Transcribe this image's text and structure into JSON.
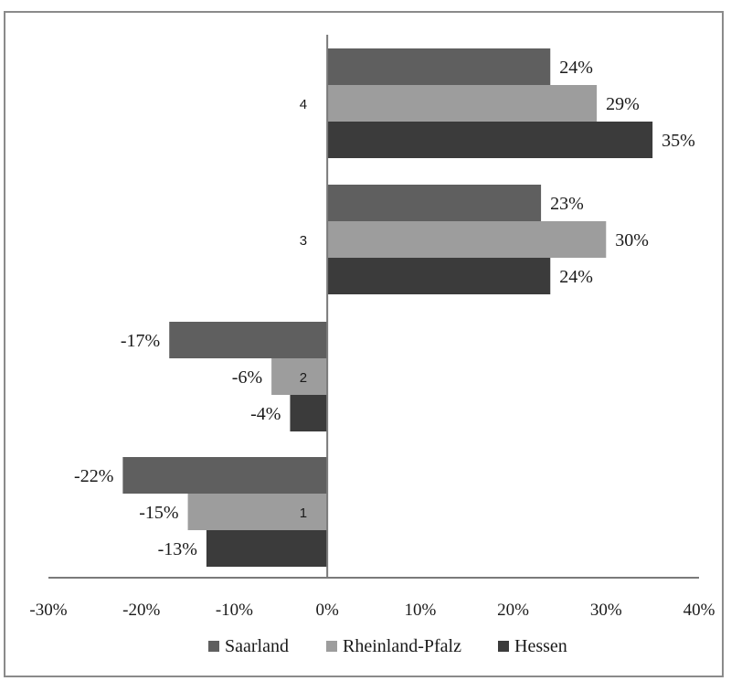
{
  "chart_data": {
    "type": "bar",
    "orientation": "horizontal",
    "title": "",
    "xlabel": "",
    "ylabel": "",
    "categories": [
      "1",
      "2",
      "3",
      "4"
    ],
    "series": [
      {
        "name": "Saarland",
        "values": [
          -22,
          -17,
          23,
          24
        ],
        "color": "#5f5f5f"
      },
      {
        "name": "Rheinland-Pfalz",
        "values": [
          -15,
          -6,
          30,
          29
        ],
        "color": "#9d9d9d"
      },
      {
        "name": "Hessen",
        "values": [
          -13,
          -4,
          24,
          35
        ],
        "color": "#3b3b3b"
      }
    ],
    "value_labels": {
      "Saarland": [
        "-22%",
        "-17%",
        "23%",
        "24%"
      ],
      "Rheinland-Pfalz": [
        "-15%",
        "-6%",
        "30%",
        "29%"
      ],
      "Hessen": [
        "-13%",
        "-4%",
        "24%",
        "35%"
      ]
    },
    "xlim": [
      -30,
      40
    ],
    "xticks": [
      -30,
      -20,
      -10,
      0,
      10,
      20,
      30,
      40
    ],
    "xtick_labels": [
      "-30%",
      "-20%",
      "-10%",
      "0%",
      "10%",
      "20%",
      "30%",
      "40%"
    ],
    "grid": false,
    "legend_position": "bottom"
  }
}
